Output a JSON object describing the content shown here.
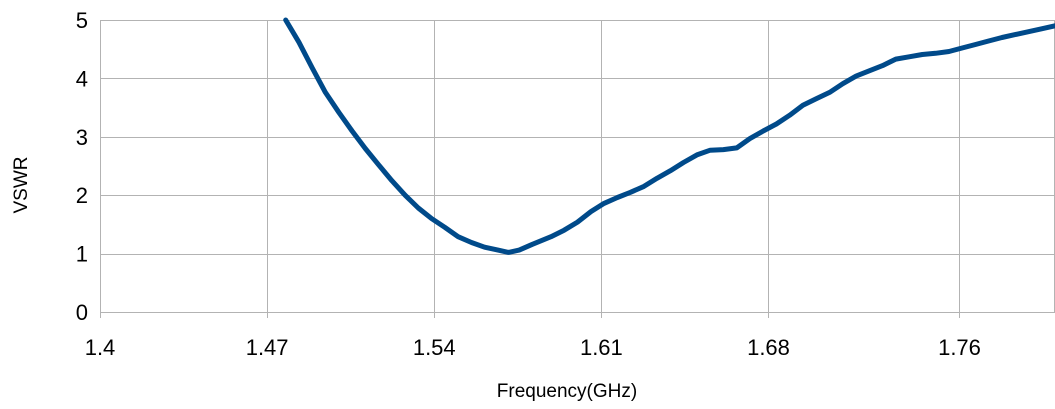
{
  "chart_data": {
    "type": "line",
    "title": "",
    "xlabel": "Frequency(GHz)",
    "ylabel": "VSWR",
    "xlim": [
      1.4,
      1.8
    ],
    "ylim": [
      0,
      5
    ],
    "x_ticks": [
      "1.4",
      "1.47",
      "1.54",
      "1.61",
      "1.68",
      "1.76"
    ],
    "y_ticks": [
      "0",
      "1",
      "2",
      "3",
      "4",
      "5"
    ],
    "grid": true,
    "legend": "none",
    "series": [
      {
        "color": "#004a8a",
        "x": [
          1.4778,
          1.4833,
          1.4889,
          1.4944,
          1.5,
          1.5056,
          1.5111,
          1.5167,
          1.5222,
          1.5278,
          1.5333,
          1.5389,
          1.5444,
          1.55,
          1.5556,
          1.5611,
          1.5667,
          1.5711,
          1.5756,
          1.5811,
          1.5889,
          1.5944,
          1.6,
          1.6056,
          1.6111,
          1.6167,
          1.6222,
          1.6278,
          1.6333,
          1.6389,
          1.6444,
          1.65,
          1.6556,
          1.6611,
          1.6667,
          1.6722,
          1.6778,
          1.6833,
          1.6889,
          1.6944,
          1.7,
          1.7056,
          1.7111,
          1.7167,
          1.7222,
          1.7278,
          1.7333,
          1.7389,
          1.7444,
          1.75,
          1.7556,
          1.7611,
          1.7667,
          1.7722,
          1.7778,
          1.7833,
          1.7889,
          1.7944,
          1.8
        ],
        "values": [
          5.0,
          4.62,
          4.18,
          3.76,
          3.42,
          3.1,
          2.8,
          2.52,
          2.25,
          2.0,
          1.78,
          1.6,
          1.45,
          1.29,
          1.19,
          1.11,
          1.06,
          1.02,
          1.06,
          1.16,
          1.29,
          1.4,
          1.54,
          1.72,
          1.86,
          1.96,
          2.05,
          2.15,
          2.29,
          2.42,
          2.56,
          2.69,
          2.77,
          2.78,
          2.81,
          2.97,
          3.1,
          3.22,
          3.37,
          3.54,
          3.65,
          3.76,
          3.91,
          4.04,
          4.13,
          4.22,
          4.33,
          4.37,
          4.41,
          4.43,
          4.46,
          4.52,
          4.58,
          4.64,
          4.7,
          4.75,
          4.8,
          4.85,
          4.9
        ]
      }
    ]
  }
}
